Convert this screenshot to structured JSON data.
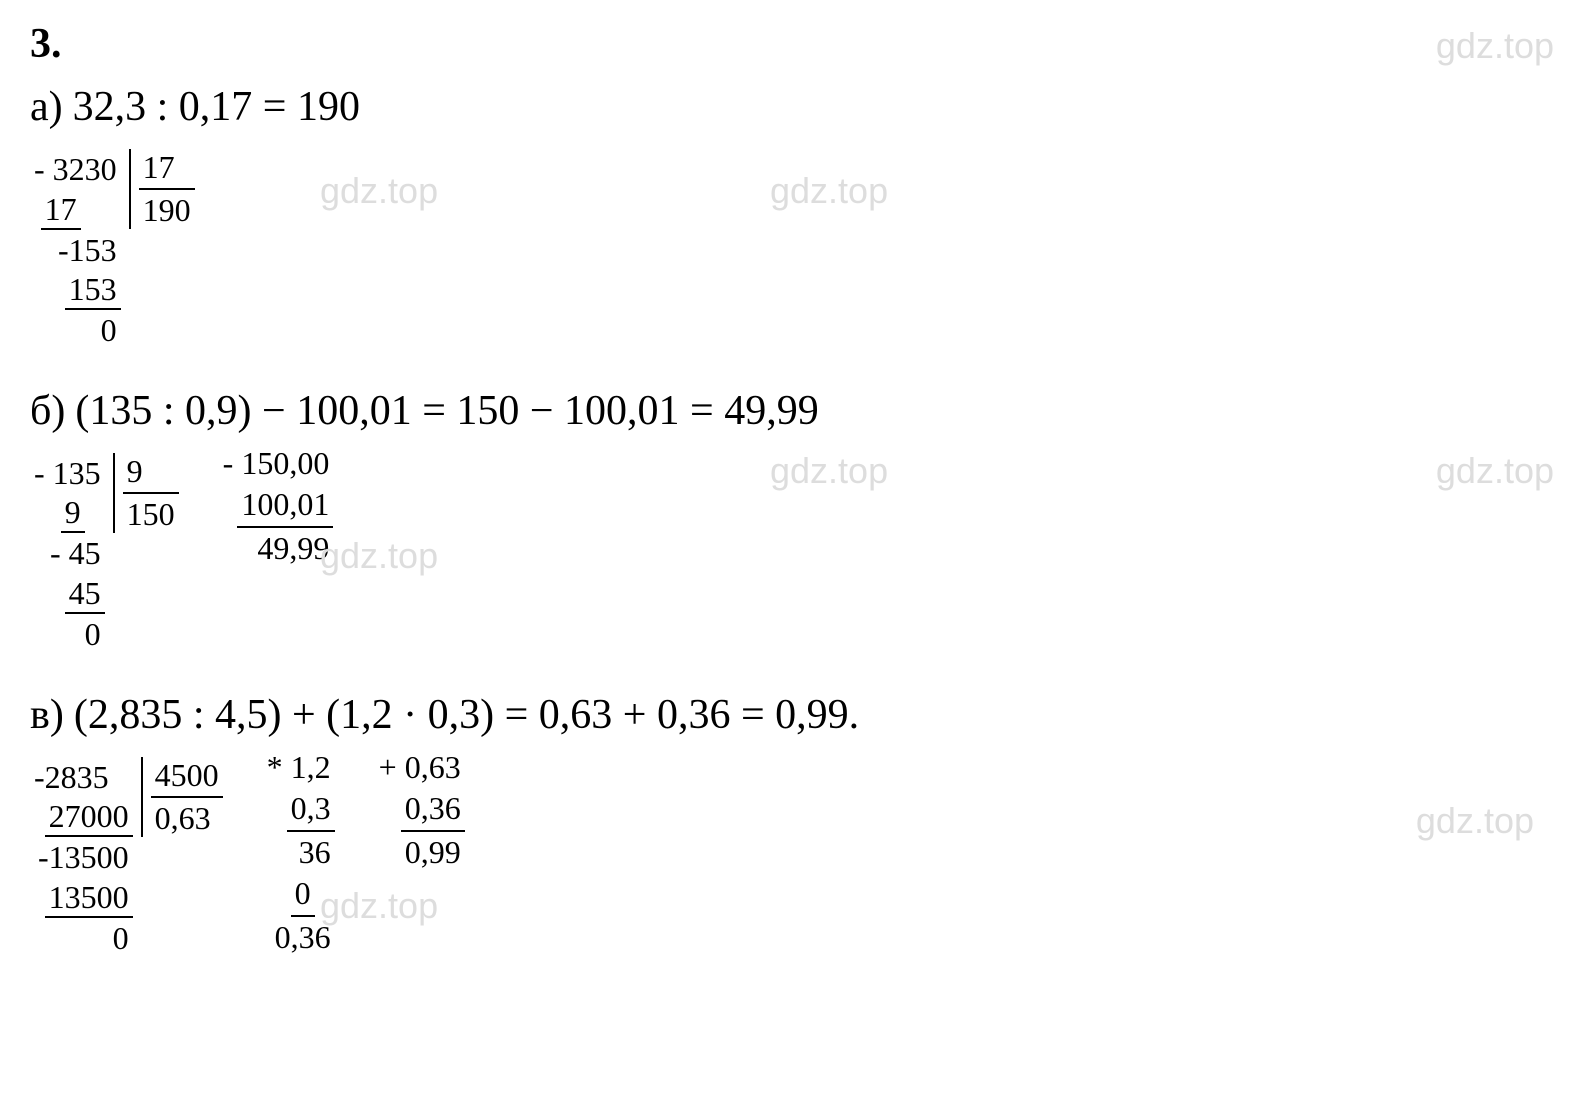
{
  "problem_number": "3.",
  "watermark": "gdz.top",
  "colors": {
    "text": "#000000",
    "watermark": "#dddddd",
    "background": "#ffffff"
  },
  "fonts": {
    "main_family": "Times New Roman",
    "watermark_family": "Arial",
    "equation_size_pt": 42,
    "calc_size_pt": 32,
    "watermark_size_pt": 36
  },
  "section_a": {
    "label": "а)",
    "equation": "32,3 : 0,17  =  190",
    "long_division": {
      "dividend_rows": [
        {
          "text": "- 3230",
          "underline": false
        },
        {
          "text": "17",
          "underline": true,
          "offset": 1
        },
        {
          "text": "-153",
          "underline": false
        },
        {
          "text": "153",
          "underline": true
        },
        {
          "text": "0",
          "underline": false
        }
      ],
      "divisor": "17",
      "quotient": "190"
    }
  },
  "section_b": {
    "label": "б)",
    "equation": "(135 : 0,9) − 100,01  =  150 − 100,01  =  49,99",
    "long_division": {
      "dividend_rows": [
        {
          "text": "- 135",
          "underline": false
        },
        {
          "text": "9",
          "underline": true,
          "offset": 1
        },
        {
          "text": "- 45",
          "underline": false
        },
        {
          "text": "45",
          "underline": true
        },
        {
          "text": "0",
          "underline": false
        }
      ],
      "divisor": "9",
      "quotient": "150"
    },
    "subtraction": {
      "rows": [
        {
          "text": "- 150,00",
          "underline": false
        },
        {
          "text": "100,01",
          "underline": true
        },
        {
          "text": "49,99",
          "underline": false
        }
      ]
    }
  },
  "section_c": {
    "label": "в)",
    "equation": "(2,835 : 4,5)  +  (1,2 · 0,3)  =  0,63  +  0,36  =  0,99.",
    "long_division": {
      "dividend_rows": [
        {
          "text": "-2835",
          "underline": false
        },
        {
          "text": "27000",
          "underline": true
        },
        {
          "text": "-13500",
          "underline": false
        },
        {
          "text": "13500",
          "underline": true
        },
        {
          "text": "0",
          "underline": false
        }
      ],
      "divisor": "4500",
      "quotient": "0,63"
    },
    "multiplication": {
      "rows": [
        {
          "text": "* 1,2",
          "underline": false
        },
        {
          "text": "0,3",
          "underline": true
        },
        {
          "text": "36",
          "underline": false
        },
        {
          "text": "0",
          "underline": true
        },
        {
          "text": "0,36",
          "underline": false
        }
      ]
    },
    "addition": {
      "rows": [
        {
          "text": "+ 0,63",
          "underline": false
        },
        {
          "text": "0,36",
          "underline": true
        },
        {
          "text": "0,99",
          "underline": false
        }
      ]
    }
  }
}
